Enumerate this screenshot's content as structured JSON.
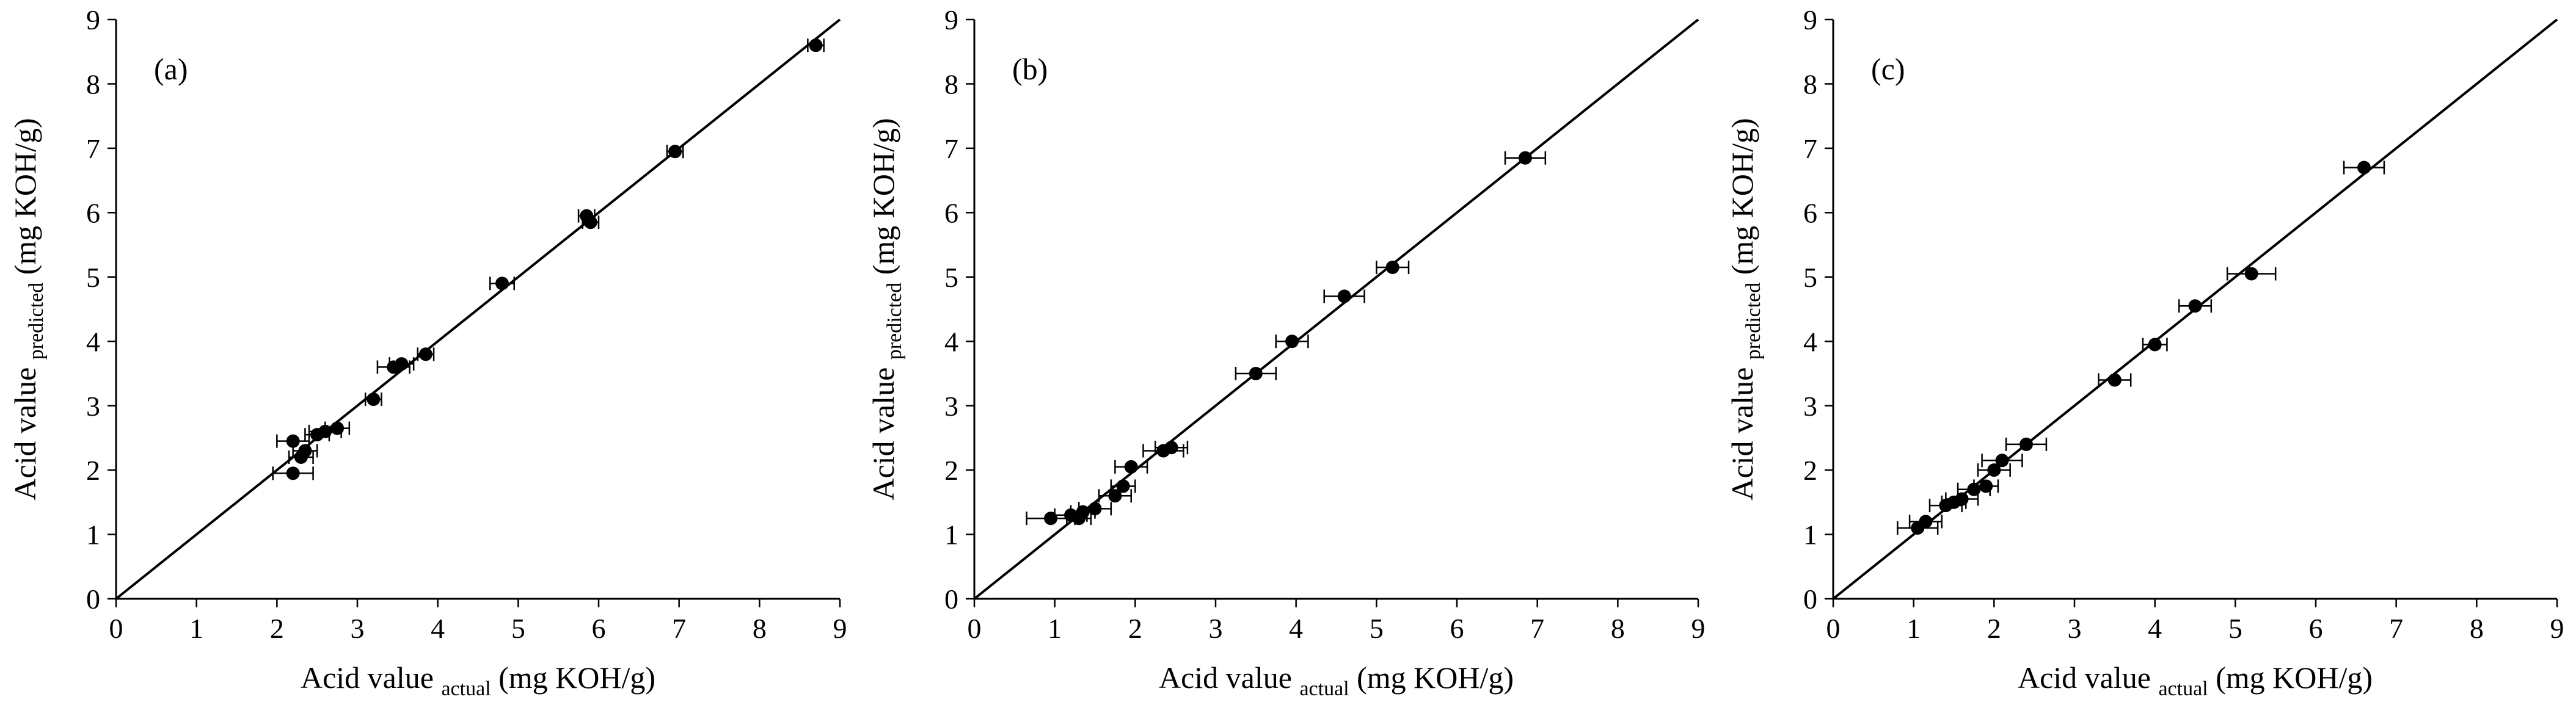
{
  "figure": {
    "background_color": "#ffffff",
    "marker_color": "#000000",
    "line_color": "#000000",
    "panel_count": 3
  },
  "chart_data": [
    {
      "type": "scatter",
      "panel_label": "(a)",
      "xlabel_main": "Acid value",
      "xlabel_sub": "actual",
      "xlabel_unit": "(mg KOH/g)",
      "ylabel_main": "Acid value",
      "ylabel_sub": "predicted",
      "ylabel_unit": "(mg KOH/g)",
      "xlim": [
        0,
        9
      ],
      "ylim": [
        0,
        9
      ],
      "xticks": [
        0,
        1,
        2,
        3,
        4,
        5,
        6,
        7,
        8,
        9
      ],
      "yticks": [
        0,
        1,
        2,
        3,
        4,
        5,
        6,
        7,
        8,
        9
      ],
      "identity_line": true,
      "legend": "none",
      "grid": false,
      "points": [
        {
          "x": 2.2,
          "y": 1.95,
          "xerr": 0.25
        },
        {
          "x": 2.2,
          "y": 2.45,
          "xerr": 0.2
        },
        {
          "x": 2.3,
          "y": 2.2,
          "xerr": 0.15
        },
        {
          "x": 2.35,
          "y": 2.3,
          "xerr": 0.15
        },
        {
          "x": 2.5,
          "y": 2.55,
          "xerr": 0.15
        },
        {
          "x": 2.6,
          "y": 2.6,
          "xerr": 0.2
        },
        {
          "x": 2.75,
          "y": 2.65,
          "xerr": 0.15
        },
        {
          "x": 3.2,
          "y": 3.1,
          "xerr": 0.1
        },
        {
          "x": 3.45,
          "y": 3.6,
          "xerr": 0.2
        },
        {
          "x": 3.55,
          "y": 3.65,
          "xerr": 0.15
        },
        {
          "x": 3.85,
          "y": 3.8,
          "xerr": 0.1
        },
        {
          "x": 4.8,
          "y": 4.9,
          "xerr": 0.15
        },
        {
          "x": 5.85,
          "y": 5.95,
          "xerr": 0.1
        },
        {
          "x": 5.9,
          "y": 5.85,
          "xerr": 0.1
        },
        {
          "x": 6.95,
          "y": 6.95,
          "xerr": 0.1
        },
        {
          "x": 8.7,
          "y": 8.6,
          "xerr": 0.1
        }
      ]
    },
    {
      "type": "scatter",
      "panel_label": "(b)",
      "xlabel_main": "Acid value",
      "xlabel_sub": "actual",
      "xlabel_unit": "(mg KOH/g)",
      "ylabel_main": "Acid value",
      "ylabel_sub": "predicted",
      "ylabel_unit": "(mg KOH/g)",
      "xlim": [
        0,
        9
      ],
      "ylim": [
        0,
        9
      ],
      "xticks": [
        0,
        1,
        2,
        3,
        4,
        5,
        6,
        7,
        8,
        9
      ],
      "yticks": [
        0,
        1,
        2,
        3,
        4,
        5,
        6,
        7,
        8,
        9
      ],
      "identity_line": true,
      "legend": "none",
      "grid": false,
      "points": [
        {
          "x": 0.95,
          "y": 1.25,
          "xerr": 0.3
        },
        {
          "x": 1.2,
          "y": 1.3,
          "xerr": 0.2
        },
        {
          "x": 1.3,
          "y": 1.25,
          "xerr": 0.15
        },
        {
          "x": 1.35,
          "y": 1.35,
          "xerr": 0.15
        },
        {
          "x": 1.5,
          "y": 1.4,
          "xerr": 0.2
        },
        {
          "x": 1.75,
          "y": 1.6,
          "xerr": 0.2
        },
        {
          "x": 1.85,
          "y": 1.75,
          "xerr": 0.15
        },
        {
          "x": 1.95,
          "y": 2.05,
          "xerr": 0.2
        },
        {
          "x": 2.35,
          "y": 2.3,
          "xerr": 0.25
        },
        {
          "x": 2.45,
          "y": 2.35,
          "xerr": 0.2
        },
        {
          "x": 3.5,
          "y": 3.5,
          "xerr": 0.25
        },
        {
          "x": 3.95,
          "y": 4.0,
          "xerr": 0.2
        },
        {
          "x": 4.6,
          "y": 4.7,
          "xerr": 0.25
        },
        {
          "x": 5.2,
          "y": 5.15,
          "xerr": 0.2
        },
        {
          "x": 6.85,
          "y": 6.85,
          "xerr": 0.25
        }
      ]
    },
    {
      "type": "scatter",
      "panel_label": "(c)",
      "xlabel_main": "Acid value",
      "xlabel_sub": "actual",
      "xlabel_unit": "(mg KOH/g)",
      "ylabel_main": "Acid value",
      "ylabel_sub": "predicted",
      "ylabel_unit": "(mg KOH/g)",
      "xlim": [
        0,
        9
      ],
      "ylim": [
        0,
        9
      ],
      "xticks": [
        0,
        1,
        2,
        3,
        4,
        5,
        6,
        7,
        8,
        9
      ],
      "yticks": [
        0,
        1,
        2,
        3,
        4,
        5,
        6,
        7,
        8,
        9
      ],
      "identity_line": true,
      "legend": "none",
      "grid": false,
      "points": [
        {
          "x": 1.05,
          "y": 1.1,
          "xerr": 0.25
        },
        {
          "x": 1.15,
          "y": 1.2,
          "xerr": 0.2
        },
        {
          "x": 1.4,
          "y": 1.45,
          "xerr": 0.2
        },
        {
          "x": 1.5,
          "y": 1.5,
          "xerr": 0.15
        },
        {
          "x": 1.6,
          "y": 1.55,
          "xerr": 0.2
        },
        {
          "x": 1.75,
          "y": 1.7,
          "xerr": 0.2
        },
        {
          "x": 1.9,
          "y": 1.75,
          "xerr": 0.15
        },
        {
          "x": 2.0,
          "y": 2.0,
          "xerr": 0.2
        },
        {
          "x": 2.1,
          "y": 2.15,
          "xerr": 0.25
        },
        {
          "x": 2.4,
          "y": 2.4,
          "xerr": 0.25
        },
        {
          "x": 3.5,
          "y": 3.4,
          "xerr": 0.2
        },
        {
          "x": 4.0,
          "y": 3.95,
          "xerr": 0.15
        },
        {
          "x": 4.5,
          "y": 4.55,
          "xerr": 0.2
        },
        {
          "x": 5.2,
          "y": 5.05,
          "xerr": 0.3
        },
        {
          "x": 6.6,
          "y": 6.7,
          "xerr": 0.25
        }
      ]
    }
  ]
}
